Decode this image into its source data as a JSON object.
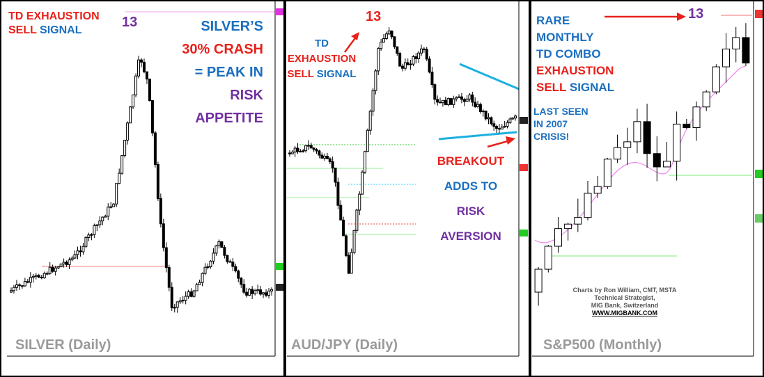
{
  "panels": [
    {
      "label": "SILVER (Daily)",
      "annotations": [
        {
          "align": "start",
          "lines": [
            [
              {
                "text": "TD EXHAUSTION",
                "color": "#e8201a"
              }
            ],
            [
              {
                "text": "SELL",
                "color": "#e8201a"
              },
              {
                "text": " SIGNAL",
                "color": "#1a6fc0"
              }
            ]
          ]
        },
        {
          "align": "start",
          "lines": [
            [
              {
                "text": "13",
                "color": "#7030a0"
              }
            ]
          ]
        },
        {
          "align": "end",
          "lines": [
            [
              {
                "text": "SILVER’S",
                "color": "#1a6fc0"
              }
            ],
            [
              {
                "text": "30% CRASH",
                "color": "#e8201a"
              }
            ],
            [
              {
                "text": "= PEAK IN",
                "color": "#1a6fc0"
              }
            ],
            [
              {
                "text": "RISK",
                "color": "#7030a0"
              }
            ],
            [
              {
                "text": "APPETITE",
                "color": "#7030a0"
              }
            ]
          ]
        }
      ]
    },
    {
      "label": "AUD/JPY (Daily)",
      "annotations": [
        {
          "align": "start",
          "lines": [
            [
              {
                "text": "13",
                "color": "#e8201a"
              }
            ]
          ]
        },
        {
          "align": "middle",
          "lines": [
            [
              {
                "text": "TD",
                "color": "#1a6fc0"
              }
            ],
            [
              {
                "text": "EXHAUSTION",
                "color": "#e8201a"
              }
            ],
            [
              {
                "text": "SELL",
                "color": "#e8201a"
              },
              {
                "text": " SIGNAL",
                "color": "#1a6fc0"
              }
            ]
          ]
        },
        {
          "align": "middle",
          "lines": [
            [
              {
                "text": "BREAKOUT",
                "color": "#e8201a"
              }
            ],
            [
              {
                "text": "ADDS TO",
                "color": "#1a6fc0"
              }
            ],
            [
              {
                "text": "RISK",
                "color": "#7030a0"
              }
            ],
            [
              {
                "text": "AVERSION",
                "color": "#7030a0"
              }
            ]
          ]
        }
      ]
    },
    {
      "label": "S&P500 (Monthly)",
      "annotations": [
        {
          "align": "start",
          "lines": [
            [
              {
                "text": "RARE",
                "color": "#1a6fc0"
              }
            ],
            [
              {
                "text": "MONTHLY",
                "color": "#1a6fc0"
              }
            ],
            [
              {
                "text": "TD COMBO",
                "color": "#1a6fc0"
              }
            ],
            [
              {
                "text": "EXHAUSTION",
                "color": "#e8201a"
              }
            ],
            [
              {
                "text": "SELL",
                "color": "#e8201a"
              },
              {
                "text": " SIGNAL",
                "color": "#1a6fc0"
              }
            ]
          ]
        },
        {
          "align": "start",
          "lines": [
            [
              {
                "text": "13",
                "color": "#7030a0"
              }
            ]
          ]
        },
        {
          "align": "start",
          "lines": [
            [
              {
                "text": "LAST SEEN",
                "color": "#1a6fc0"
              }
            ],
            [
              {
                "text": "IN 2007",
                "color": "#1a6fc0"
              }
            ],
            [
              {
                "text": "CRISIS!",
                "color": "#1a6fc0"
              }
            ]
          ]
        }
      ]
    }
  ],
  "credits": [
    "Charts by Ron William, CMT, MSTA",
    "Technical Strategist,",
    "MIG Bank, Switzerland",
    "WWW.MIGBANK.COM"
  ]
}
